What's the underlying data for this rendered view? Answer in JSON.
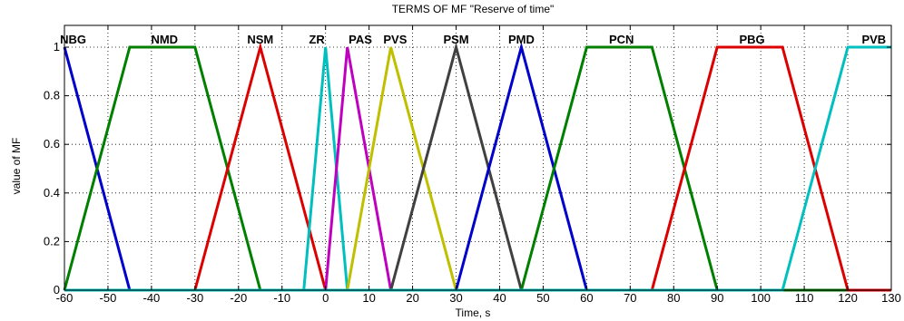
{
  "chart_data": {
    "type": "line",
    "title": "TERMS OF MF \"Reserve of time\"",
    "xlabel": "Time, s",
    "ylabel": "value of MF",
    "xlim": [
      -60,
      130
    ],
    "ylim": [
      0,
      1
    ],
    "grid": true,
    "x_ticks": [
      -60,
      -50,
      -40,
      -30,
      -20,
      -10,
      0,
      10,
      20,
      30,
      40,
      50,
      60,
      70,
      80,
      90,
      100,
      110,
      120,
      130
    ],
    "y_ticks": [
      0,
      0.2,
      0.4,
      0.6,
      0.8,
      1
    ],
    "x_tick_labels": [
      "-60",
      "-50",
      "-40",
      "-30",
      "-20",
      "-10",
      "0",
      "10",
      "20",
      "30",
      "40",
      "50",
      "60",
      "70",
      "80",
      "90",
      "100",
      "110",
      "120",
      "130"
    ],
    "y_tick_labels": [
      "0",
      "0.2",
      "0.4",
      "0.6",
      "0.8",
      "1"
    ],
    "series": [
      {
        "name": "NBG",
        "color": "#0000cc",
        "x": [
          -60,
          -45,
          130
        ],
        "y": [
          1,
          0,
          0
        ],
        "label_x": -58
      },
      {
        "name": "NMD",
        "color": "#007f00",
        "x": [
          -60,
          -45,
          -30,
          -15,
          130
        ],
        "y": [
          0,
          1,
          1,
          0,
          0
        ],
        "label_x": -37
      },
      {
        "name": "NSM",
        "color": "#dd0000",
        "x": [
          -60,
          -30,
          -15,
          0,
          130
        ],
        "y": [
          0,
          0,
          1,
          0,
          0
        ],
        "label_x": -15
      },
      {
        "name": "ZR",
        "color": "#00bfbf",
        "x": [
          -60,
          -5,
          0,
          5,
          130
        ],
        "y": [
          0,
          0,
          1,
          0,
          0
        ],
        "label_x": -2
      },
      {
        "name": "PAS",
        "color": "#bf00bf",
        "x": [
          -60,
          0,
          5,
          15,
          130
        ],
        "y": [
          0,
          0,
          1,
          0,
          0
        ],
        "label_x": 8
      },
      {
        "name": "PVS",
        "color": "#bfbf00",
        "x": [
          -60,
          5,
          15,
          30,
          130
        ],
        "y": [
          0,
          0,
          1,
          0,
          0
        ],
        "label_x": 16
      },
      {
        "name": "PSM",
        "color": "#404040",
        "x": [
          -60,
          15,
          30,
          45,
          130
        ],
        "y": [
          0,
          0,
          1,
          0,
          0
        ],
        "label_x": 30
      },
      {
        "name": "PMD",
        "color": "#0000cc",
        "x": [
          -60,
          30,
          45,
          60,
          130
        ],
        "y": [
          0,
          0,
          1,
          0,
          0
        ],
        "label_x": 45
      },
      {
        "name": "PCN",
        "color": "#007f00",
        "x": [
          -60,
          45,
          60,
          75,
          90,
          130
        ],
        "y": [
          0,
          0,
          1,
          1,
          0,
          0
        ],
        "label_x": 68
      },
      {
        "name": "PBG",
        "color": "#dd0000",
        "x": [
          -60,
          75,
          90,
          105,
          120,
          130
        ],
        "y": [
          0,
          0,
          1,
          1,
          0,
          0
        ],
        "label_x": 98
      },
      {
        "name": "PVB",
        "color": "#00bfbf",
        "x": [
          -60,
          105,
          120,
          130
        ],
        "y": [
          0,
          0,
          1,
          1
        ],
        "label_x": 126
      }
    ]
  }
}
